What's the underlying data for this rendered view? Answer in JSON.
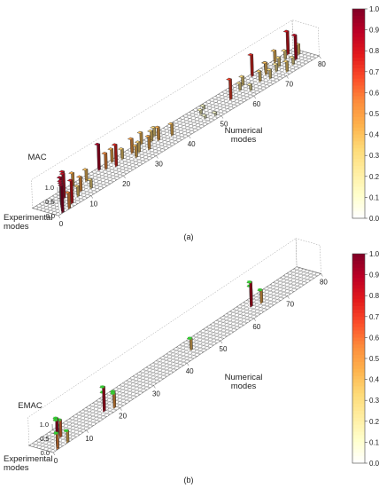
{
  "chart_data": [
    {
      "type": "3d-bar",
      "panel_label": "(a)",
      "zlabel": "MAC",
      "xlabel": "Numerical modes",
      "ylabel_lines": [
        "Experimental",
        "modes"
      ],
      "x_ticks": [
        "0",
        "10",
        "20",
        "30",
        "40",
        "50",
        "60",
        "70",
        "80"
      ],
      "x_range": [
        0,
        80
      ],
      "z_ticks": [
        "1.0",
        "0.5",
        "0.0"
      ],
      "z_range": [
        0,
        1
      ],
      "colorbar": {
        "ticks": [
          "1.0",
          "0.9",
          "0.8",
          "0.7",
          "0.6",
          "0.5",
          "0.4",
          "0.3",
          "0.2",
          "0.1",
          "0.0"
        ],
        "range": [
          0,
          1
        ],
        "colors": [
          "#ffffff",
          "#ffffcc",
          "#ffeda0",
          "#fed976",
          "#feb24c",
          "#fd8d3c",
          "#fc4e2a",
          "#e31a1c",
          "#bd0026",
          "#800026"
        ]
      },
      "bars": [
        {
          "x": 1,
          "y": 0,
          "v": 0.95
        },
        {
          "x": 2,
          "y": 1,
          "v": 0.92
        },
        {
          "x": 3,
          "y": 0,
          "v": 0.55
        },
        {
          "x": 3,
          "y": 2,
          "v": 0.88
        },
        {
          "x": 4,
          "y": 3,
          "v": 0.9
        },
        {
          "x": 5,
          "y": 1,
          "v": 0.8
        },
        {
          "x": 6,
          "y": 4,
          "v": 0.85
        },
        {
          "x": 7,
          "y": 5,
          "v": 0.82
        },
        {
          "x": 8,
          "y": 2,
          "v": 0.35
        },
        {
          "x": 10,
          "y": 3,
          "v": 0.5
        },
        {
          "x": 11,
          "y": 6,
          "v": 0.45
        },
        {
          "x": 12,
          "y": 2,
          "v": 0.3
        },
        {
          "x": 14,
          "y": 5,
          "v": 0.4
        },
        {
          "x": 19,
          "y": 6,
          "v": 0.9
        },
        {
          "x": 20,
          "y": 5,
          "v": 0.55
        },
        {
          "x": 22,
          "y": 4,
          "v": 0.75
        },
        {
          "x": 23,
          "y": 6,
          "v": 0.45
        },
        {
          "x": 25,
          "y": 5,
          "v": 0.35
        },
        {
          "x": 27,
          "y": 3,
          "v": 0.4
        },
        {
          "x": 28,
          "y": 5,
          "v": 0.5
        },
        {
          "x": 29,
          "y": 4,
          "v": 0.35
        },
        {
          "x": 31,
          "y": 3,
          "v": 0.45
        },
        {
          "x": 32,
          "y": 6,
          "v": 0.4
        },
        {
          "x": 34,
          "y": 5,
          "v": 0.35
        },
        {
          "x": 35,
          "y": 4,
          "v": 0.45
        },
        {
          "x": 36,
          "y": 6,
          "v": 0.3
        },
        {
          "x": 38,
          "y": 3,
          "v": 0.4
        },
        {
          "x": 47,
          "y": 2,
          "v": 0.1
        },
        {
          "x": 48,
          "y": 4,
          "v": 0.15
        },
        {
          "x": 49,
          "y": 1,
          "v": 0.1
        },
        {
          "x": 50,
          "y": 5,
          "v": 0.12
        },
        {
          "x": 56,
          "y": 3,
          "v": 0.7
        },
        {
          "x": 60,
          "y": 4,
          "v": 0.25
        },
        {
          "x": 61,
          "y": 2,
          "v": 0.2
        },
        {
          "x": 62,
          "y": 5,
          "v": 0.3
        },
        {
          "x": 65,
          "y": 3,
          "v": 0.35
        },
        {
          "x": 66,
          "y": 6,
          "v": 0.75
        },
        {
          "x": 67,
          "y": 2,
          "v": 0.3
        },
        {
          "x": 68,
          "y": 4,
          "v": 0.4
        },
        {
          "x": 69,
          "y": 5,
          "v": 0.3
        },
        {
          "x": 70,
          "y": 3,
          "v": 0.25
        },
        {
          "x": 71,
          "y": 1,
          "v": 0.35
        },
        {
          "x": 72,
          "y": 4,
          "v": 0.3
        },
        {
          "x": 73,
          "y": 6,
          "v": 0.4
        },
        {
          "x": 74,
          "y": 2,
          "v": 0.25
        },
        {
          "x": 75,
          "y": 5,
          "v": 0.3
        },
        {
          "x": 76,
          "y": 3,
          "v": 0.85
        },
        {
          "x": 77,
          "y": 6,
          "v": 0.8
        },
        {
          "x": 78,
          "y": 4,
          "v": 0.35
        }
      ]
    },
    {
      "type": "3d-bar",
      "panel_label": "(b)",
      "zlabel": "EMAC",
      "xlabel": "Numerical modes",
      "ylabel_lines": [
        "Experimental",
        "modes"
      ],
      "x_ticks": [
        "0",
        "10",
        "20",
        "30",
        "40",
        "50",
        "60",
        "70",
        "80"
      ],
      "x_range": [
        0,
        80
      ],
      "z_ticks": [
        "1.0",
        "0.5",
        "0.0"
      ],
      "z_range": [
        0,
        1
      ],
      "colorbar": {
        "ticks": [
          "1.0",
          "0.9",
          "0.8",
          "0.7",
          "0.6",
          "0.5",
          "0.4",
          "0.3",
          "0.2",
          "0.1",
          "0.0"
        ],
        "range": [
          0,
          1
        ],
        "colors": [
          "#ffffff",
          "#ffffcc",
          "#ffeda0",
          "#fed976",
          "#feb24c",
          "#fd8d3c",
          "#fc4e2a",
          "#e31a1c",
          "#bd0026",
          "#800026"
        ]
      },
      "bars": [
        {
          "x": 1,
          "y": 0,
          "v": 0.55
        },
        {
          "x": 2,
          "y": 1,
          "v": 0.9
        },
        {
          "x": 3,
          "y": 2,
          "v": 0.85
        },
        {
          "x": 4,
          "y": 0,
          "v": 0.4
        },
        {
          "x": 5,
          "y": 3,
          "v": 0.6
        },
        {
          "x": 6,
          "y": 4,
          "v": 0.3
        },
        {
          "x": 17,
          "y": 2,
          "v": 0.85
        },
        {
          "x": 18,
          "y": 3,
          "v": 0.55
        },
        {
          "x": 19,
          "y": 1,
          "v": 0.5
        },
        {
          "x": 20,
          "y": 2,
          "v": 0.45
        },
        {
          "x": 44,
          "y": 3,
          "v": 0.4
        },
        {
          "x": 63,
          "y": 4,
          "v": 0.85
        },
        {
          "x": 64,
          "y": 5,
          "v": 0.6
        },
        {
          "x": 65,
          "y": 3,
          "v": 0.45
        }
      ],
      "highlight_color": "#33cc33"
    }
  ]
}
